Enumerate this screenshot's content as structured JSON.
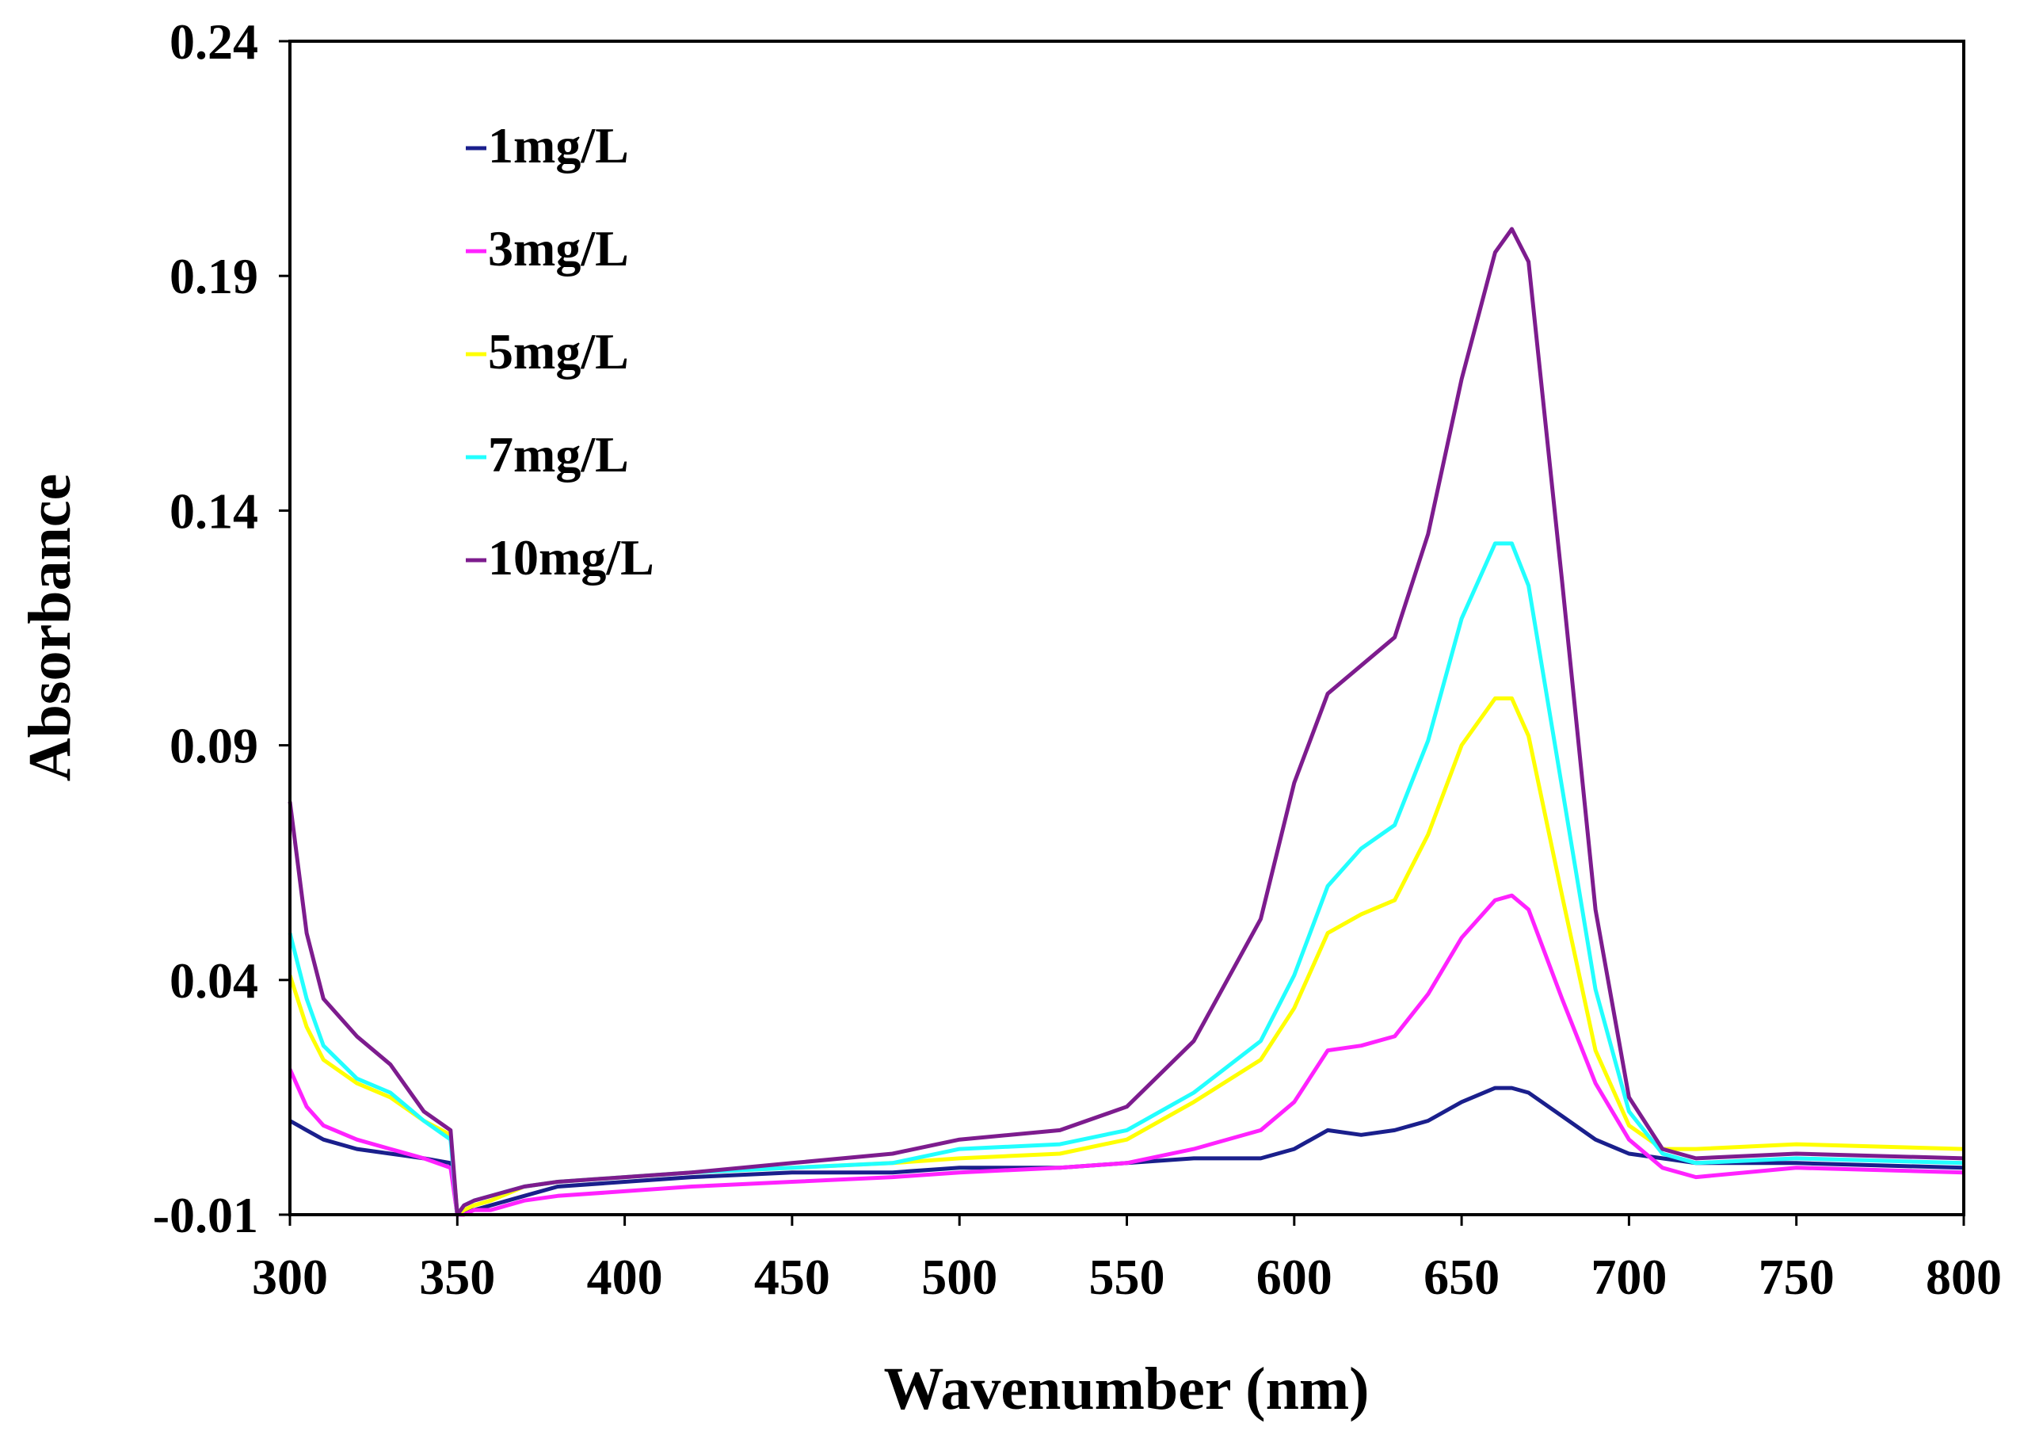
{
  "chart_data": {
    "type": "line",
    "title": "",
    "xlabel": "Wavenumber (nm)",
    "ylabel": "Absorbance",
    "xlim": [
      300,
      800
    ],
    "ylim": [
      -0.01,
      0.24
    ],
    "x_ticks": [
      "300",
      "350",
      "400",
      "450",
      "500",
      "550",
      "600",
      "650",
      "700",
      "750",
      "800"
    ],
    "y_ticks": [
      "-0.01",
      "0.04",
      "0.09",
      "0.14",
      "0.19",
      "0.24"
    ],
    "legend_position": "top-left",
    "series": [
      {
        "name": "1mg/L",
        "color": "#1a1f8c",
        "points": [
          [
            300,
            0.01
          ],
          [
            305,
            0.008
          ],
          [
            310,
            0.006
          ],
          [
            320,
            0.004
          ],
          [
            330,
            0.003
          ],
          [
            340,
            0.002
          ],
          [
            348,
            0.001
          ],
          [
            350,
            -0.01
          ],
          [
            352,
            -0.009
          ],
          [
            355,
            -0.009
          ],
          [
            360,
            -0.008
          ],
          [
            370,
            -0.006
          ],
          [
            380,
            -0.004
          ],
          [
            400,
            -0.003
          ],
          [
            420,
            -0.002
          ],
          [
            450,
            -0.001
          ],
          [
            480,
            -0.001
          ],
          [
            500,
            0.0
          ],
          [
            530,
            0.0
          ],
          [
            550,
            0.001
          ],
          [
            570,
            0.002
          ],
          [
            590,
            0.002
          ],
          [
            600,
            0.004
          ],
          [
            610,
            0.008
          ],
          [
            620,
            0.007
          ],
          [
            630,
            0.008
          ],
          [
            640,
            0.01
          ],
          [
            650,
            0.014
          ],
          [
            660,
            0.017
          ],
          [
            665,
            0.017
          ],
          [
            670,
            0.016
          ],
          [
            680,
            0.011
          ],
          [
            690,
            0.006
          ],
          [
            700,
            0.003
          ],
          [
            710,
            0.002
          ],
          [
            720,
            0.001
          ],
          [
            750,
            0.001
          ],
          [
            800,
            0.0
          ]
        ]
      },
      {
        "name": "3mg/L",
        "color": "#ff22ff",
        "points": [
          [
            300,
            0.021
          ],
          [
            305,
            0.013
          ],
          [
            310,
            0.009
          ],
          [
            320,
            0.006
          ],
          [
            330,
            0.004
          ],
          [
            340,
            0.002
          ],
          [
            348,
            0.0
          ],
          [
            350,
            -0.01
          ],
          [
            352,
            -0.01
          ],
          [
            355,
            -0.009
          ],
          [
            360,
            -0.009
          ],
          [
            370,
            -0.007
          ],
          [
            380,
            -0.006
          ],
          [
            400,
            -0.005
          ],
          [
            420,
            -0.004
          ],
          [
            450,
            -0.003
          ],
          [
            480,
            -0.002
          ],
          [
            500,
            -0.001
          ],
          [
            530,
            0.0
          ],
          [
            550,
            0.001
          ],
          [
            570,
            0.004
          ],
          [
            590,
            0.008
          ],
          [
            600,
            0.014
          ],
          [
            610,
            0.025
          ],
          [
            620,
            0.026
          ],
          [
            630,
            0.028
          ],
          [
            640,
            0.037
          ],
          [
            650,
            0.049
          ],
          [
            660,
            0.057
          ],
          [
            665,
            0.058
          ],
          [
            670,
            0.055
          ],
          [
            680,
            0.036
          ],
          [
            690,
            0.018
          ],
          [
            700,
            0.006
          ],
          [
            710,
            0.0
          ],
          [
            720,
            -0.002
          ],
          [
            750,
            0.0
          ],
          [
            800,
            -0.001
          ]
        ]
      },
      {
        "name": "5mg/L",
        "color": "#ffff00",
        "points": [
          [
            300,
            0.041
          ],
          [
            305,
            0.03
          ],
          [
            310,
            0.023
          ],
          [
            320,
            0.018
          ],
          [
            330,
            0.015
          ],
          [
            340,
            0.01
          ],
          [
            348,
            0.007
          ],
          [
            350,
            -0.01
          ],
          [
            352,
            -0.009
          ],
          [
            355,
            -0.008
          ],
          [
            360,
            -0.007
          ],
          [
            370,
            -0.004
          ],
          [
            380,
            -0.003
          ],
          [
            400,
            -0.002
          ],
          [
            420,
            -0.001
          ],
          [
            450,
            0.0
          ],
          [
            480,
            0.001
          ],
          [
            500,
            0.002
          ],
          [
            530,
            0.003
          ],
          [
            550,
            0.006
          ],
          [
            570,
            0.014
          ],
          [
            590,
            0.023
          ],
          [
            600,
            0.034
          ],
          [
            610,
            0.05
          ],
          [
            620,
            0.054
          ],
          [
            630,
            0.057
          ],
          [
            640,
            0.071
          ],
          [
            650,
            0.09
          ],
          [
            660,
            0.1
          ],
          [
            665,
            0.1
          ],
          [
            670,
            0.092
          ],
          [
            680,
            0.058
          ],
          [
            690,
            0.025
          ],
          [
            700,
            0.009
          ],
          [
            710,
            0.004
          ],
          [
            720,
            0.004
          ],
          [
            750,
            0.005
          ],
          [
            800,
            0.004
          ]
        ]
      },
      {
        "name": "7mg/L",
        "color": "#22ffff",
        "points": [
          [
            300,
            0.05
          ],
          [
            305,
            0.036
          ],
          [
            310,
            0.026
          ],
          [
            320,
            0.019
          ],
          [
            330,
            0.016
          ],
          [
            340,
            0.01
          ],
          [
            348,
            0.006
          ],
          [
            350,
            -0.01
          ],
          [
            352,
            -0.008
          ],
          [
            355,
            -0.007
          ],
          [
            360,
            -0.006
          ],
          [
            370,
            -0.004
          ],
          [
            380,
            -0.003
          ],
          [
            400,
            -0.002
          ],
          [
            420,
            -0.001
          ],
          [
            450,
            0.0
          ],
          [
            480,
            0.001
          ],
          [
            500,
            0.004
          ],
          [
            530,
            0.005
          ],
          [
            550,
            0.008
          ],
          [
            570,
            0.016
          ],
          [
            590,
            0.027
          ],
          [
            600,
            0.041
          ],
          [
            610,
            0.06
          ],
          [
            620,
            0.068
          ],
          [
            630,
            0.073
          ],
          [
            640,
            0.091
          ],
          [
            650,
            0.117
          ],
          [
            660,
            0.133
          ],
          [
            665,
            0.133
          ],
          [
            670,
            0.124
          ],
          [
            680,
            0.081
          ],
          [
            690,
            0.038
          ],
          [
            700,
            0.012
          ],
          [
            710,
            0.003
          ],
          [
            720,
            0.001
          ],
          [
            750,
            0.002
          ],
          [
            800,
            0.001
          ]
        ]
      },
      {
        "name": "10mg/L",
        "color": "#7d1c8e",
        "points": [
          [
            300,
            0.078
          ],
          [
            305,
            0.05
          ],
          [
            310,
            0.036
          ],
          [
            320,
            0.028
          ],
          [
            330,
            0.022
          ],
          [
            340,
            0.012
          ],
          [
            348,
            0.008
          ],
          [
            350,
            -0.01
          ],
          [
            352,
            -0.008
          ],
          [
            355,
            -0.007
          ],
          [
            360,
            -0.006
          ],
          [
            370,
            -0.004
          ],
          [
            380,
            -0.003
          ],
          [
            400,
            -0.002
          ],
          [
            420,
            -0.001
          ],
          [
            450,
            0.001
          ],
          [
            480,
            0.003
          ],
          [
            500,
            0.006
          ],
          [
            530,
            0.008
          ],
          [
            550,
            0.013
          ],
          [
            570,
            0.027
          ],
          [
            590,
            0.053
          ],
          [
            600,
            0.082
          ],
          [
            610,
            0.101
          ],
          [
            620,
            0.107
          ],
          [
            630,
            0.113
          ],
          [
            640,
            0.135
          ],
          [
            650,
            0.168
          ],
          [
            660,
            0.195
          ],
          [
            665,
            0.2
          ],
          [
            670,
            0.193
          ],
          [
            680,
            0.125
          ],
          [
            690,
            0.055
          ],
          [
            700,
            0.015
          ],
          [
            710,
            0.004
          ],
          [
            720,
            0.002
          ],
          [
            750,
            0.003
          ],
          [
            800,
            0.002
          ]
        ]
      }
    ]
  }
}
